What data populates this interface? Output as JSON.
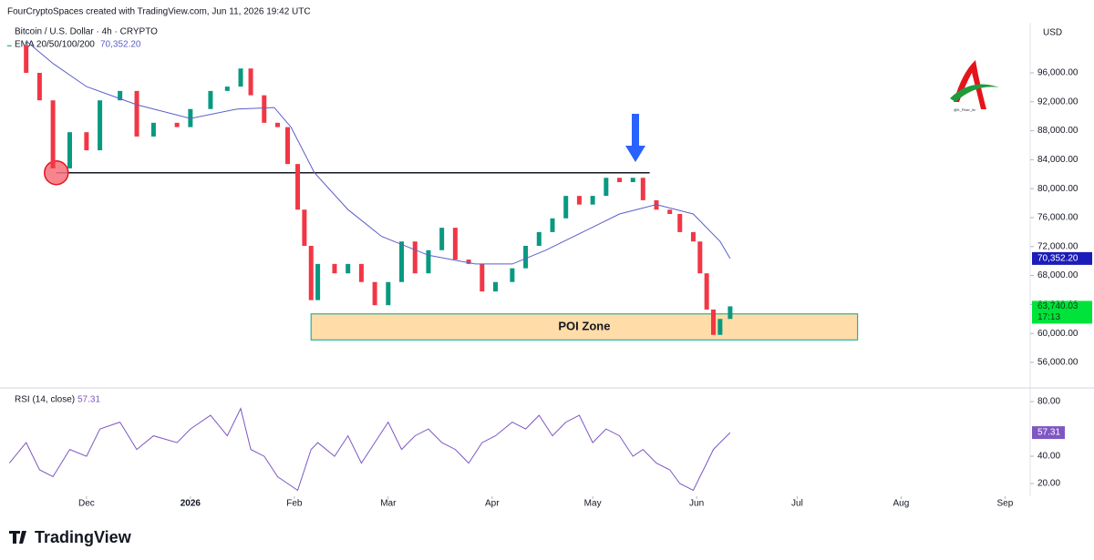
{
  "header": {
    "credit": "FourCryptoSpaces created with TradingView.com, Jun 11, 2026 19:42 UTC",
    "currency": "USD",
    "countdown": "17:13",
    "watermark": "@K_Fixer_liv",
    "branding": "TradingView"
  },
  "chart_data": [
    {
      "type": "candlestick",
      "xlim": [
        -25.8,
        281.5
      ],
      "ylim": [
        52600,
        102540
      ],
      "yticks": [
        {
          "value": 56000,
          "label": "56,000.00"
        },
        {
          "value": 60000,
          "label": "60,000.00"
        },
        {
          "value": 64000,
          "label": "64,000.00"
        },
        {
          "value": 68000,
          "label": "68,000.00"
        },
        {
          "value": 72000,
          "label": "72,000.00"
        },
        {
          "value": 76000,
          "label": "76,000.00"
        },
        {
          "value": 80000,
          "label": "80,000.00"
        },
        {
          "value": 84000,
          "label": "84,000.00"
        },
        {
          "value": 88000,
          "label": "88,000.00"
        },
        {
          "value": 92000,
          "label": "92,000.00"
        },
        {
          "value": 96000,
          "label": "96,000.00"
        }
      ],
      "series": [
        {
          "name": "Bitcoin / U.S. Dollar · 4h · CRYPTO",
          "up_color": "#089981",
          "down_color": "#f23645",
          "x": [
            -23,
            -18,
            -14,
            -10,
            -5,
            0,
            4,
            10,
            15,
            20,
            27,
            31,
            37,
            42,
            46,
            49,
            53,
            57,
            60,
            63,
            65,
            67,
            69,
            74,
            78,
            82,
            86,
            90,
            94,
            98,
            102,
            106,
            110,
            114,
            118,
            122,
            127,
            131,
            135,
            139,
            143,
            147,
            151,
            155,
            159,
            163,
            166,
            170,
            174,
            177,
            181,
            183,
            185,
            187,
            189,
            192
          ],
          "values": [
            99800,
            96000,
            92200,
            82800,
            87800,
            85300,
            92200,
            93500,
            87200,
            89100,
            88500,
            91000,
            93500,
            94100,
            96600,
            92900,
            89100,
            88500,
            83400,
            77100,
            72100,
            64600,
            69600,
            68300,
            69600,
            67100,
            63900,
            67100,
            72700,
            68300,
            71500,
            74600,
            70200,
            69600,
            65800,
            67100,
            69000,
            72100,
            74000,
            75900,
            79000,
            77800,
            79000,
            81500,
            80900,
            81500,
            78400,
            77100,
            76500,
            74000,
            72700,
            68300,
            63300,
            59800,
            62000,
            63740.03
          ],
          "value_labels": [
            null,
            null,
            null,
            null,
            null,
            null,
            null,
            null,
            null,
            null,
            null,
            null,
            null,
            null,
            null,
            null,
            null,
            null,
            null,
            null,
            null,
            null,
            null,
            null,
            null,
            null,
            null,
            null,
            null,
            null,
            null,
            null,
            null,
            null,
            null,
            null,
            null,
            null,
            null,
            null,
            null,
            null,
            null,
            null,
            null,
            null,
            null,
            null,
            null,
            null,
            null,
            null,
            null,
            null,
            null,
            "63,740.03"
          ]
        },
        {
          "name": "EMA 20/50/100/200",
          "type": "line",
          "color": "#5b5fc7",
          "x": [
            -18,
            -10,
            0,
            15,
            31,
            45,
            56,
            61,
            68,
            78,
            88,
            102,
            116,
            127,
            137,
            148,
            159,
            170,
            181,
            189,
            192
          ],
          "values": [
            100400,
            97300,
            94100,
            91600,
            89700,
            91000,
            91200,
            88500,
            82200,
            77100,
            73400,
            70800,
            69600,
            69600,
            71500,
            74000,
            76500,
            77800,
            76500,
            72700,
            70352.2
          ],
          "value_labels": [
            null,
            null,
            null,
            null,
            null,
            null,
            null,
            null,
            null,
            null,
            null,
            null,
            null,
            null,
            null,
            null,
            null,
            null,
            null,
            null,
            "70,352.20"
          ]
        }
      ],
      "level_line": {
        "y": 82200,
        "x": [
          -9,
          168
        ]
      },
      "poi_zone": {
        "label": "POI Zone",
        "x": [
          67,
          230
        ],
        "y": [
          59100,
          62700
        ]
      }
    },
    {
      "type": "line",
      "xlim": [
        -25.8,
        281.5
      ],
      "ylim": [
        10.7,
        88.7
      ],
      "xticks": [
        {
          "value": 0,
          "label": "Dec"
        },
        {
          "value": 31,
          "label": "2026"
        },
        {
          "value": 62,
          "label": "Feb"
        },
        {
          "value": 90,
          "label": "Mar"
        },
        {
          "value": 121,
          "label": "Apr"
        },
        {
          "value": 151,
          "label": "May"
        },
        {
          "value": 182,
          "label": "Jun"
        },
        {
          "value": 212,
          "label": "Jul"
        },
        {
          "value": 243,
          "label": "Aug"
        },
        {
          "value": 274,
          "label": "Sep"
        }
      ],
      "yticks": [
        {
          "value": 20,
          "label": "20.00"
        },
        {
          "value": 40,
          "label": "40.00"
        },
        {
          "value": 80,
          "label": "80.00"
        }
      ],
      "series": [
        {
          "name": "RSI (14, close)",
          "color": "#7e57c2",
          "x": [
            -23,
            -18,
            -14,
            -10,
            -5,
            0,
            4,
            10,
            15,
            20,
            27,
            31,
            37,
            42,
            46,
            49,
            53,
            57,
            60,
            63,
            65,
            67,
            69,
            74,
            78,
            82,
            86,
            90,
            94,
            98,
            102,
            106,
            110,
            114,
            118,
            122,
            127,
            131,
            135,
            139,
            143,
            147,
            151,
            155,
            159,
            163,
            166,
            170,
            174,
            177,
            181,
            183,
            185,
            187,
            189,
            192
          ],
          "values": [
            35,
            50,
            30,
            25,
            45,
            40,
            60,
            65,
            45,
            55,
            50,
            60,
            70,
            55,
            75,
            45,
            40,
            25,
            20,
            15,
            30,
            45,
            50,
            40,
            55,
            35,
            50,
            65,
            45,
            55,
            60,
            50,
            45,
            35,
            50,
            55,
            65,
            60,
            70,
            55,
            65,
            70,
            50,
            60,
            55,
            40,
            45,
            35,
            30,
            20,
            15,
            25,
            35,
            45,
            50,
            57.31
          ]
        }
      ]
    }
  ]
}
